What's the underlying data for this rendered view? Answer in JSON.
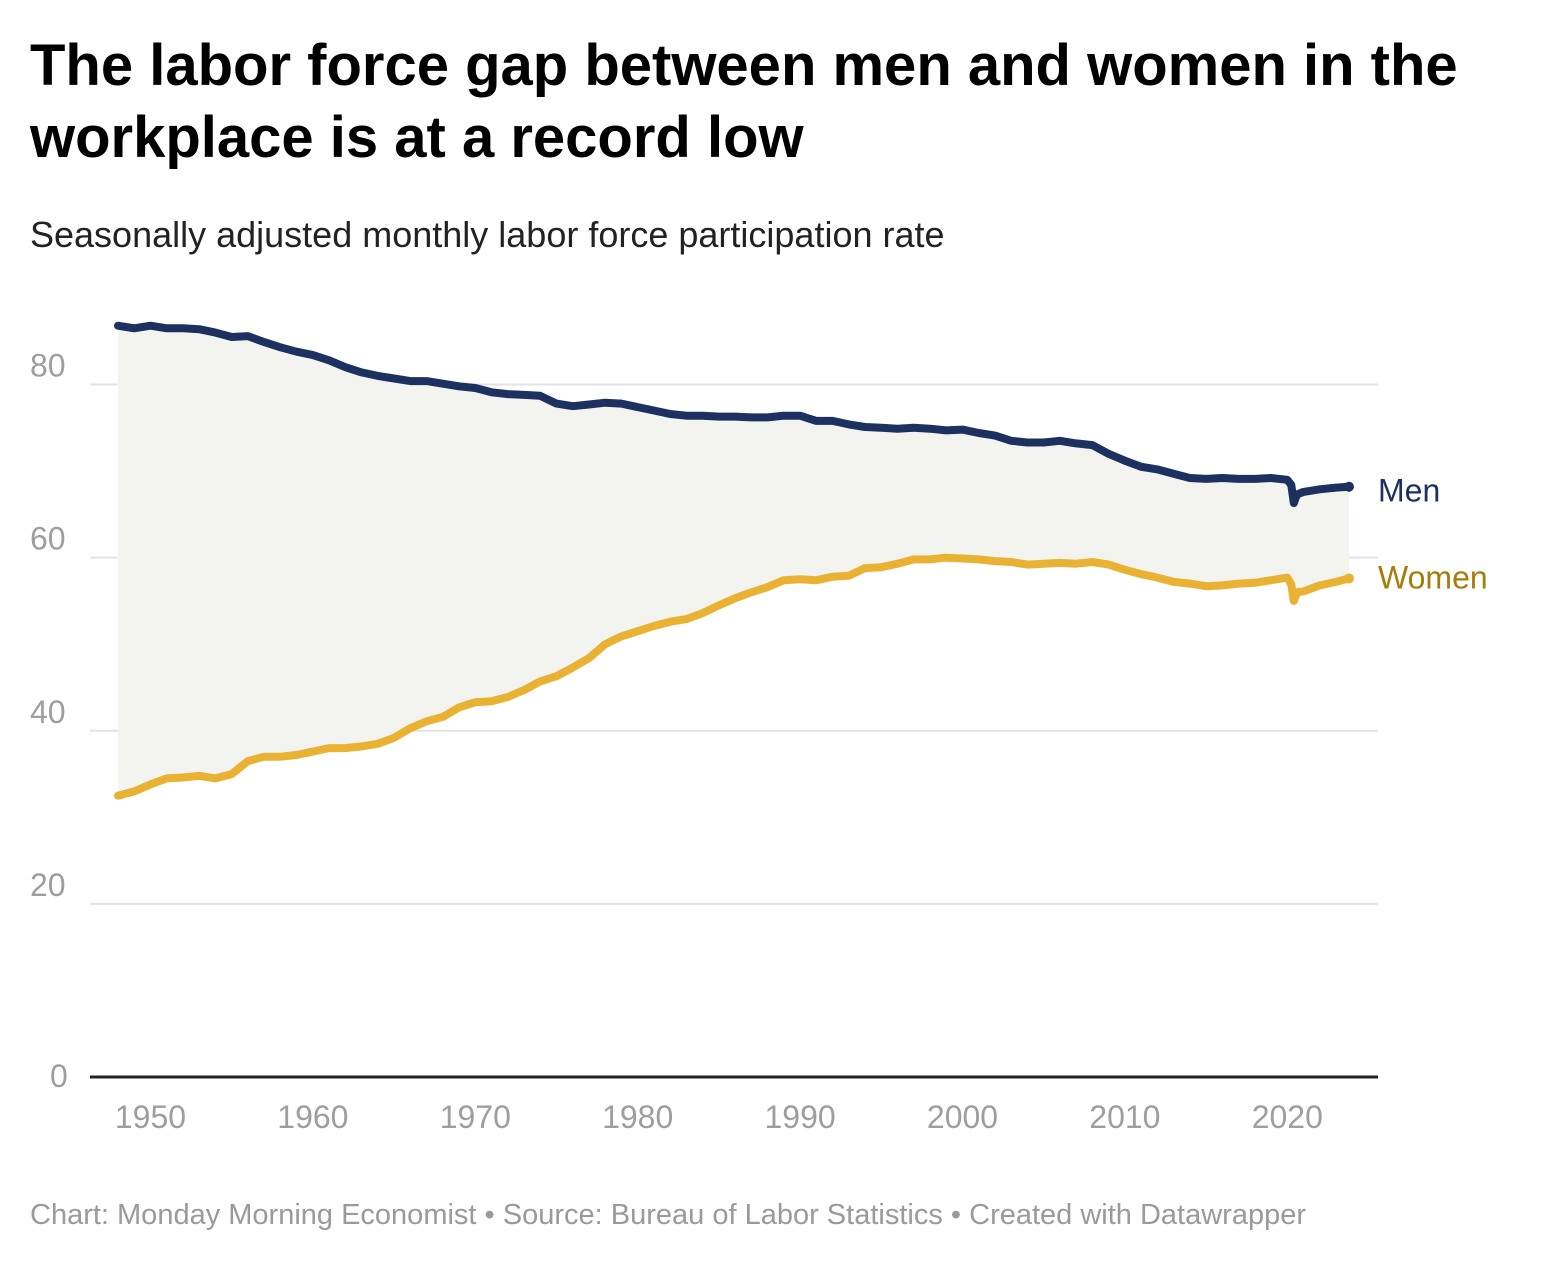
{
  "title": "The labor force gap between men and women in the workplace is at a record low",
  "subtitle": "Seasonally adjusted monthly labor force participation rate",
  "footer": {
    "chart_credit": "Chart: Monday Morning Economist",
    "source": "Source: Bureau of Labor Statistics",
    "tool": "Created with Datawrapper",
    "separator": "•"
  },
  "colors": {
    "men": "#1c3160",
    "women": "#e9b233",
    "men_label": "#1c3160",
    "women_label": "#a67c0a",
    "fill": "#f3f4f0",
    "grid": "#e3e3e3",
    "axis": "#222222",
    "tick": "#9e9e9e"
  },
  "chart_data": {
    "type": "line",
    "title": "The labor force gap between men and women in the workplace is at a record low",
    "subtitle": "Seasonally adjusted monthly labor force participation rate",
    "xlabel": "",
    "ylabel": "",
    "xlim": [
      1948,
      2023.8
    ],
    "ylim": [
      0,
      90
    ],
    "x_ticks": [
      1950,
      1960,
      1970,
      1980,
      1990,
      2000,
      2010,
      2020
    ],
    "y_ticks": [
      0,
      20,
      40,
      60,
      80
    ],
    "grid": "horizontal",
    "legend": "inline-right",
    "area_between_series": true,
    "series": [
      {
        "name": "Men",
        "color": "#1c3160",
        "x": [
          1948,
          1949,
          1950,
          1951,
          1952,
          1953,
          1954,
          1955,
          1956,
          1957,
          1958,
          1959,
          1960,
          1961,
          1962,
          1963,
          1964,
          1965,
          1966,
          1967,
          1968,
          1969,
          1970,
          1971,
          1972,
          1973,
          1974,
          1975,
          1976,
          1977,
          1978,
          1979,
          1980,
          1981,
          1982,
          1983,
          1984,
          1985,
          1986,
          1987,
          1988,
          1989,
          1990,
          1991,
          1992,
          1993,
          1994,
          1995,
          1996,
          1997,
          1998,
          1999,
          2000,
          2001,
          2002,
          2003,
          2004,
          2005,
          2006,
          2007,
          2008,
          2009,
          2010,
          2011,
          2012,
          2013,
          2014,
          2015,
          2016,
          2017,
          2018,
          2019,
          2020,
          2020.25,
          2020.4,
          2020.6,
          2021,
          2022,
          2023,
          2023.8
        ],
        "values": [
          86.8,
          86.5,
          86.8,
          86.5,
          86.5,
          86.4,
          86.0,
          85.5,
          85.6,
          84.9,
          84.3,
          83.8,
          83.4,
          82.8,
          82.0,
          81.4,
          81.0,
          80.7,
          80.4,
          80.4,
          80.1,
          79.8,
          79.6,
          79.1,
          78.9,
          78.8,
          78.7,
          77.8,
          77.5,
          77.7,
          77.9,
          77.8,
          77.4,
          77.0,
          76.6,
          76.4,
          76.4,
          76.3,
          76.3,
          76.2,
          76.2,
          76.4,
          76.4,
          75.8,
          75.8,
          75.4,
          75.1,
          75.0,
          74.9,
          75.0,
          74.9,
          74.7,
          74.8,
          74.4,
          74.1,
          73.5,
          73.3,
          73.3,
          73.5,
          73.2,
          73.0,
          72.0,
          71.2,
          70.5,
          70.2,
          69.7,
          69.2,
          69.1,
          69.2,
          69.1,
          69.1,
          69.2,
          69.0,
          68.4,
          66.3,
          67.3,
          67.6,
          67.9,
          68.1,
          68.2
        ]
      },
      {
        "name": "Women",
        "color": "#e9b233",
        "x": [
          1948,
          1949,
          1950,
          1951,
          1952,
          1953,
          1954,
          1955,
          1956,
          1957,
          1958,
          1959,
          1960,
          1961,
          1962,
          1963,
          1964,
          1965,
          1966,
          1967,
          1968,
          1969,
          1970,
          1971,
          1972,
          1973,
          1974,
          1975,
          1976,
          1977,
          1978,
          1979,
          1980,
          1981,
          1982,
          1983,
          1984,
          1985,
          1986,
          1987,
          1988,
          1989,
          1990,
          1991,
          1992,
          1993,
          1994,
          1995,
          1996,
          1997,
          1998,
          1999,
          2000,
          2001,
          2002,
          2003,
          2004,
          2005,
          2006,
          2007,
          2008,
          2009,
          2010,
          2011,
          2012,
          2013,
          2014,
          2015,
          2016,
          2017,
          2018,
          2019,
          2020,
          2020.25,
          2020.4,
          2020.6,
          2021,
          2022,
          2023,
          2023.8
        ],
        "values": [
          32.5,
          33.0,
          33.8,
          34.5,
          34.6,
          34.8,
          34.5,
          35.0,
          36.5,
          37.0,
          37.0,
          37.2,
          37.6,
          38.0,
          38.0,
          38.2,
          38.5,
          39.2,
          40.3,
          41.1,
          41.6,
          42.7,
          43.3,
          43.4,
          43.9,
          44.7,
          45.7,
          46.3,
          47.3,
          48.4,
          50.0,
          50.9,
          51.5,
          52.1,
          52.6,
          52.9,
          53.6,
          54.5,
          55.3,
          56.0,
          56.6,
          57.4,
          57.5,
          57.4,
          57.8,
          57.9,
          58.8,
          58.9,
          59.3,
          59.8,
          59.8,
          60.0,
          59.9,
          59.8,
          59.6,
          59.5,
          59.2,
          59.3,
          59.4,
          59.3,
          59.5,
          59.2,
          58.6,
          58.1,
          57.7,
          57.2,
          57.0,
          56.7,
          56.8,
          57.0,
          57.1,
          57.4,
          57.7,
          56.9,
          55.0,
          56.0,
          56.1,
          56.8,
          57.2,
          57.6
        ]
      }
    ]
  }
}
